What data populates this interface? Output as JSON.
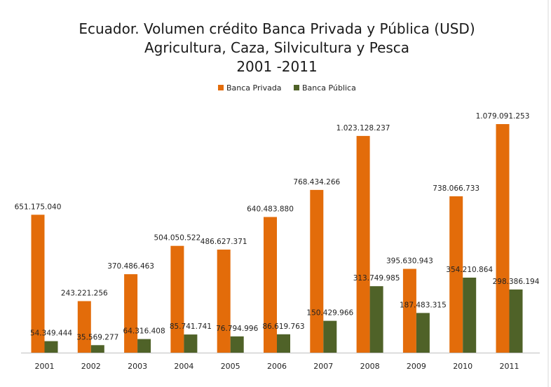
{
  "chart_data": {
    "type": "bar",
    "title_lines": [
      "Ecuador. Volumen crédito Banca Privada y Pública (USD)",
      "Agricultura, Caza, Silvicultura y Pesca",
      "2001 -2011"
    ],
    "categories": [
      "2001",
      "2002",
      "2003",
      "2004",
      "2005",
      "2006",
      "2007",
      "2008",
      "2009",
      "2010",
      "2011"
    ],
    "series": [
      {
        "name": "Banca Privada",
        "color": "#E36C0A",
        "values": [
          651175040,
          243221256,
          370486463,
          504050522,
          486627371,
          640483880,
          768434266,
          1023128237,
          395630943,
          738066733,
          1079091253
        ],
        "labels": [
          "651.175.040",
          "243.221.256",
          "370.486.463",
          "504.050.522",
          "486.627.371",
          "640.483.880",
          "768.434.266",
          "1.023.128.237",
          "395.630.943",
          "738.066.733",
          "1.079.091.253"
        ]
      },
      {
        "name": "Banca Pública",
        "color": "#4F6228",
        "values": [
          54349444,
          35569277,
          64316408,
          85741741,
          76794996,
          86619763,
          150429966,
          313749985,
          187483315,
          354210864,
          298386194
        ],
        "labels": [
          "54.349.444",
          "35.569.277",
          "64.316.408",
          "85.741.741",
          "76.794.996",
          "86.619.763",
          "150.429.966",
          "313.749.985",
          "187.483.315",
          "354.210.864",
          "298.386.194"
        ]
      }
    ],
    "legend_position": "top-center",
    "grid": false
  }
}
